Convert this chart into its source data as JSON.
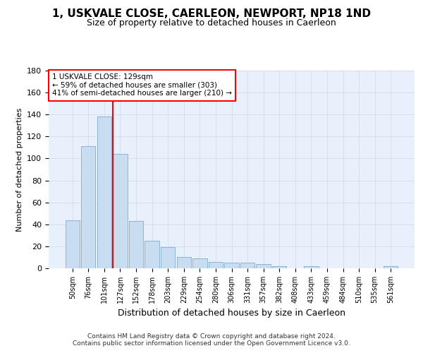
{
  "title": "1, USKVALE CLOSE, CAERLEON, NEWPORT, NP18 1ND",
  "subtitle": "Size of property relative to detached houses in Caerleon",
  "xlabel": "Distribution of detached houses by size in Caerleon",
  "ylabel": "Number of detached properties",
  "bar_color": "#c9ddf0",
  "bar_edge_color": "#8ab4d9",
  "categories": [
    "50sqm",
    "76sqm",
    "101sqm",
    "127sqm",
    "152sqm",
    "178sqm",
    "203sqm",
    "229sqm",
    "254sqm",
    "280sqm",
    "306sqm",
    "331sqm",
    "357sqm",
    "382sqm",
    "408sqm",
    "433sqm",
    "459sqm",
    "484sqm",
    "510sqm",
    "535sqm",
    "561sqm"
  ],
  "values": [
    44,
    111,
    138,
    104,
    43,
    25,
    19,
    10,
    9,
    6,
    5,
    5,
    4,
    2,
    0,
    2,
    0,
    0,
    0,
    0,
    2
  ],
  "ylim": [
    0,
    180
  ],
  "yticks": [
    0,
    20,
    40,
    60,
    80,
    100,
    120,
    140,
    160,
    180
  ],
  "property_line_x": 3.0,
  "property_line_label": "1 USKVALE CLOSE: 129sqm",
  "annotation_line1": "← 59% of detached houses are smaller (303)",
  "annotation_line2": "41% of semi-detached houses are larger (210) →",
  "footer_line1": "Contains HM Land Registry data © Crown copyright and database right 2024.",
  "footer_line2": "Contains public sector information licensed under the Open Government Licence v3.0.",
  "grid_color": "#d0d8e8",
  "background_color": "#e8f0fb",
  "fig_background": "#ffffff"
}
